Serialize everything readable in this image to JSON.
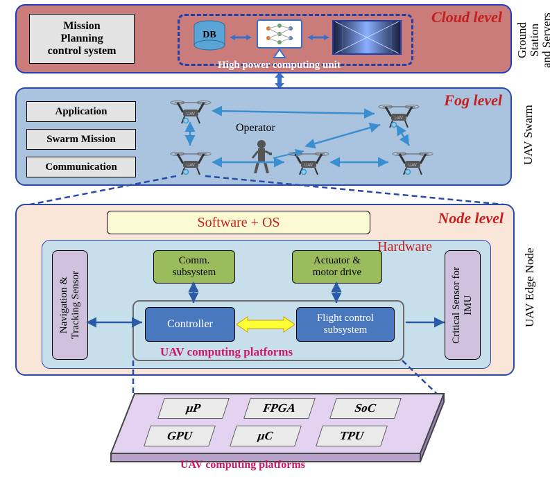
{
  "cloud": {
    "level_label": "Cloud level",
    "side_label": "Ground\nStation\nand Servers",
    "bg": "#c97c7a",
    "border": "#1f3fbf",
    "box1": "Mission\nPlanning\ncontrol system",
    "db_label": "DB",
    "caption": "High power computing unit",
    "level_color": "#c41f1f",
    "inner_border": "#1d3fae"
  },
  "fog": {
    "level_label": "Fog level",
    "side_label": "UAV Swarm",
    "bg": "#aac3de",
    "border": "#2a4aa8",
    "boxes": [
      "Application",
      "Swarm Mission",
      "Communication"
    ],
    "operator_label": "Operator",
    "level_color": "#c41f1f"
  },
  "node": {
    "level_label": "Node level",
    "side_label": "UAV Edge Node",
    "bg": "#f9e6d8",
    "border": "#2a4aa8",
    "sw_label": "Software + OS",
    "sw_bg": "#fbf9d1",
    "sw_color": "#c41f1f",
    "hw_label": "Hardware",
    "hw_bg": "#c7dfea",
    "hw_color": "#c41f1f",
    "nav_label": "Navigation &\nTracking Sensor",
    "imu_label": "Critical Sensor for\nIMU",
    "comm_label": "Comm.\nsubsystem",
    "actuator_label": "Actuator &\nmotor drive",
    "controller_label": "Controller",
    "flight_label": "Flight control\nsubsystem",
    "platforms_label": "UAV computing platforms",
    "purple": "#cfc1de",
    "green": "#9bbc5d",
    "blue": "#4a78bf",
    "yellow_arrow": "#ffff33",
    "level_color": "#c41f1f"
  },
  "platforms": {
    "chips": [
      "μP",
      "FPGA",
      "SoC",
      "GPU",
      "μC",
      "TPU"
    ],
    "caption": "UAV computing platforms",
    "bg": "#e3d3f0",
    "caption_color": "#d1156b"
  }
}
